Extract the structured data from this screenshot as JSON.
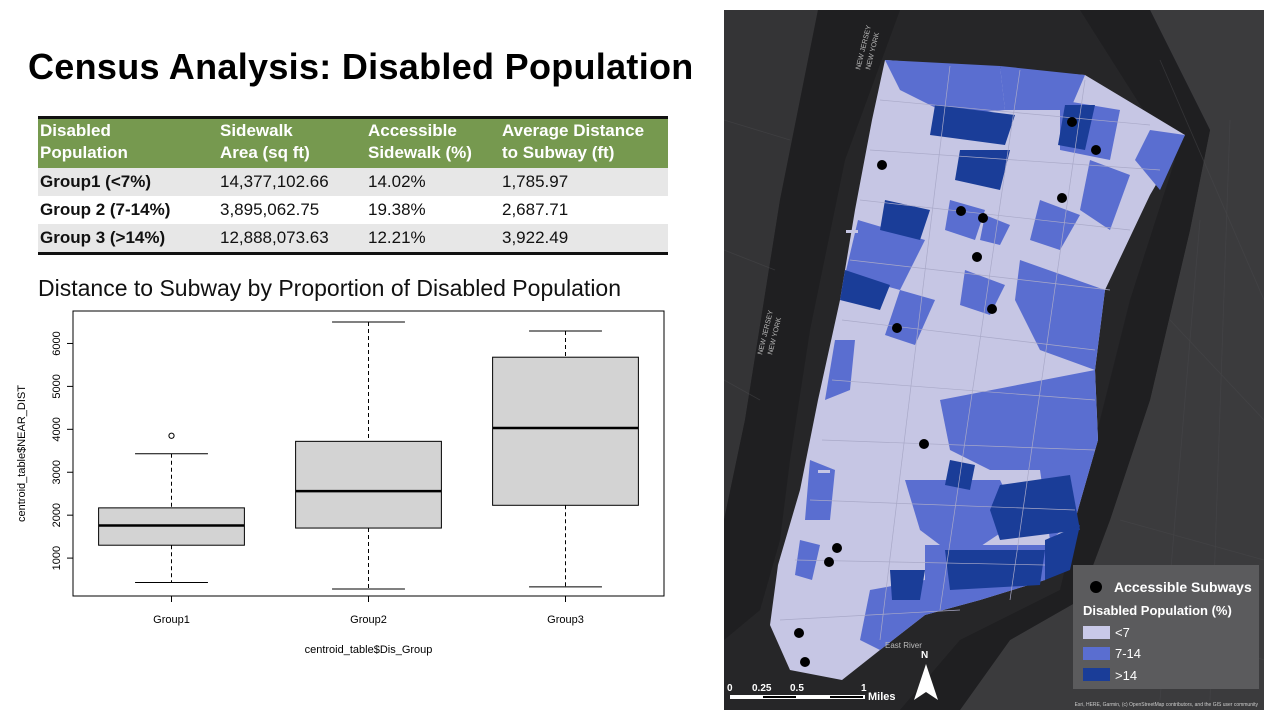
{
  "title": "Census Analysis: Disabled Population",
  "table": {
    "headers": [
      [
        "Disabled",
        "Population"
      ],
      [
        "Sidewalk",
        "Area (sq ft)"
      ],
      [
        "Accessible",
        "Sidewalk (%)"
      ],
      [
        "Average Distance",
        "to Subway (ft)"
      ]
    ],
    "rows": [
      {
        "group": "Group1 (<7%)",
        "area": "14,377,102.66",
        "accessible": "14.02%",
        "distance": "1,785.97"
      },
      {
        "group": "Group 2 (7-14%)",
        "area": "3,895,062.75",
        "accessible": "19.38%",
        "distance": "2,687.71"
      },
      {
        "group": "Group 3 (>14%)",
        "area": "12,888,073.63",
        "accessible": "12.21%",
        "distance": "3,922.49"
      }
    ]
  },
  "chart_title": "Distance to Subway by Proportion of Disabled Population",
  "chart_data": {
    "type": "box",
    "categories": [
      "Group1",
      "Group2",
      "Group3"
    ],
    "xlabel": "centroid_table$Dis_Group",
    "ylabel": "centroid_table$NEAR_DIST",
    "y_ticks": [
      1000,
      2000,
      3000,
      4000,
      5000,
      6000
    ],
    "ylim": [
      0,
      6750
    ],
    "boxes": [
      {
        "name": "Group1",
        "min": 430,
        "q1": 1300,
        "median": 1760,
        "q3": 2170,
        "max": 3430,
        "outliers": [
          3850
        ]
      },
      {
        "name": "Group2",
        "min": 280,
        "q1": 1700,
        "median": 2560,
        "q3": 3720,
        "max": 6500,
        "outliers": []
      },
      {
        "name": "Group3",
        "min": 330,
        "q1": 2230,
        "median": 4030,
        "q3": 5680,
        "max": 6290,
        "outliers": []
      }
    ],
    "grid": false,
    "colors": {
      "box": "#d3d3d3",
      "line": "#000000"
    }
  },
  "map": {
    "legend": {
      "subway_label": "Accessible Subways",
      "title": "Disabled Population (%)",
      "classes": [
        {
          "label": "<7",
          "color": "#c9c9e8"
        },
        {
          "label": "7-14",
          "color": "#5a6ed0"
        },
        {
          "label": ">14",
          "color": "#1a3d98"
        }
      ]
    },
    "scale": {
      "labels": [
        "0",
        "0.25",
        "0.5",
        "1"
      ],
      "unit": "Miles"
    },
    "north": "N",
    "labels": {
      "new_jersey": "NEW JERSEY",
      "new_york": "NEW YORK",
      "east_river": "East River"
    },
    "attribution": "Esri, HERE, Garmin, (c) OpenStreetMap contributors, and the GIS user community"
  }
}
